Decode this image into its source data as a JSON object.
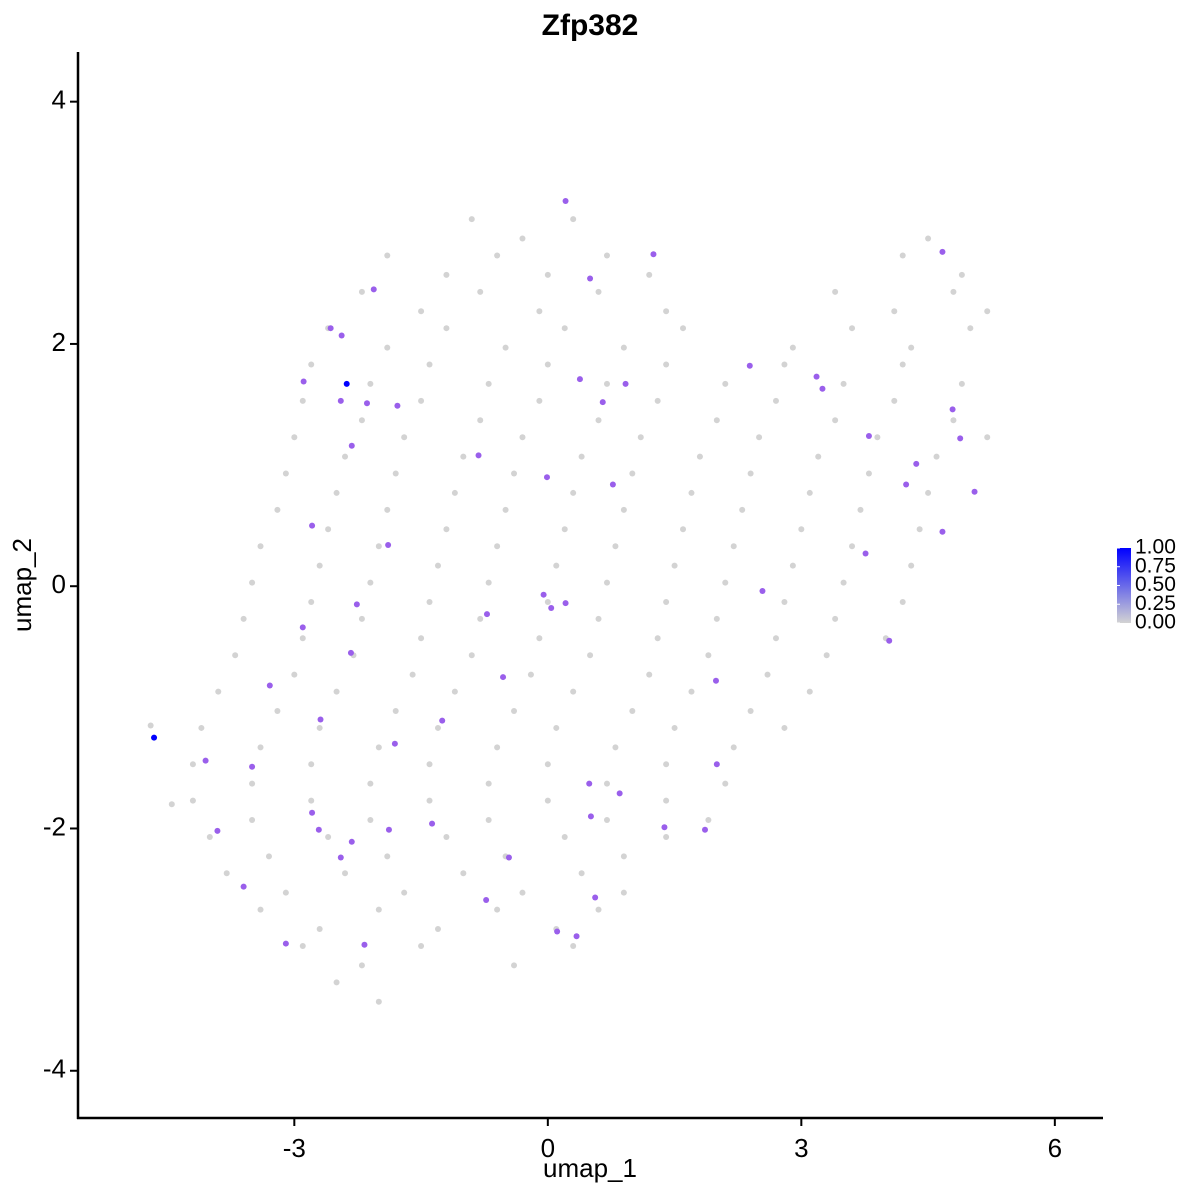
{
  "chart_data": {
    "type": "scatter",
    "title": "Zfp382",
    "xlabel": "umap_1",
    "ylabel": "umap_2",
    "xlim": [
      -5.56,
      6.57
    ],
    "ylim": [
      -4.39,
      4.41
    ],
    "xticks": [
      -3,
      0,
      3,
      6
    ],
    "yticks": [
      -4,
      -2,
      0,
      2,
      4
    ],
    "color_low": "#d3d3d3",
    "color_high": "#0000ff",
    "clim": [
      0,
      1
    ],
    "colorbar_ticks": [
      {
        "value": 0,
        "label": "0.00"
      },
      {
        "value": 0.25,
        "label": "0.25"
      },
      {
        "value": 0.5,
        "label": "0.50"
      },
      {
        "value": 0.75,
        "label": "0.75"
      },
      {
        "value": 1,
        "label": "1.00"
      }
    ],
    "x": [
      -0.9,
      -0.3,
      0.3,
      4.5,
      -1.9,
      -1.2,
      -0.6,
      0.0,
      0.7,
      1.2,
      4.2,
      4.9,
      -2.2,
      -1.5,
      -0.8,
      -0.1,
      0.6,
      1.4,
      3.4,
      4.1,
      4.8,
      5.2,
      -2.6,
      -1.9,
      -1.2,
      -0.5,
      0.2,
      0.9,
      1.6,
      2.9,
      3.6,
      4.3,
      5.0,
      -2.8,
      -2.1,
      -1.4,
      -0.7,
      0.0,
      0.7,
      1.4,
      2.1,
      2.8,
      3.5,
      4.2,
      4.9,
      -2.9,
      -2.2,
      -1.5,
      -0.8,
      -0.1,
      0.6,
      1.3,
      2.0,
      2.7,
      3.4,
      4.1,
      4.8,
      -3.0,
      -2.4,
      -1.7,
      -1.0,
      -0.3,
      0.4,
      1.1,
      1.8,
      2.5,
      3.2,
      3.9,
      4.6,
      5.2,
      -3.1,
      -2.5,
      -1.8,
      -1.1,
      -0.4,
      0.3,
      1.0,
      1.7,
      2.4,
      3.1,
      3.8,
      4.5,
      -3.2,
      -2.6,
      -1.9,
      -1.2,
      -0.5,
      0.2,
      0.9,
      1.6,
      2.3,
      3.0,
      3.7,
      4.4,
      -3.4,
      -2.7,
      -2.0,
      -1.3,
      -0.6,
      0.1,
      0.8,
      1.5,
      2.2,
      2.9,
      3.6,
      4.3,
      -3.5,
      -2.8,
      -2.1,
      -1.4,
      -0.7,
      0.0,
      0.7,
      1.4,
      2.1,
      2.8,
      3.5,
      4.2,
      -3.6,
      -2.9,
      -2.2,
      -1.5,
      -0.8,
      -0.1,
      0.6,
      1.3,
      2.0,
      2.7,
      3.4,
      4.0,
      -3.7,
      -3.0,
      -2.3,
      -1.6,
      -0.9,
      -0.2,
      0.5,
      1.2,
      1.9,
      2.6,
      3.3,
      -3.9,
      -3.2,
      -2.5,
      -1.8,
      -1.1,
      -0.4,
      0.3,
      1.0,
      1.7,
      2.4,
      3.1,
      -4.1,
      -3.4,
      -2.7,
      -2.0,
      -1.3,
      -0.6,
      0.1,
      0.8,
      1.5,
      2.2,
      2.8,
      -4.2,
      -3.5,
      -2.8,
      -2.1,
      -1.4,
      -0.7,
      0.0,
      0.7,
      1.4,
      2.1,
      -4.2,
      -3.5,
      -2.8,
      -2.1,
      -1.4,
      -0.7,
      0.0,
      0.7,
      1.4,
      1.9,
      -4.0,
      -3.3,
      -2.6,
      -1.9,
      -1.2,
      -0.5,
      0.2,
      0.9,
      1.4,
      -3.8,
      -3.1,
      -2.4,
      -1.7,
      -1.0,
      -0.3,
      0.4,
      0.9,
      -3.4,
      -2.7,
      -2.0,
      -1.3,
      -0.6,
      0.1,
      0.6,
      -2.9,
      -2.2,
      -1.5,
      -0.4,
      0.3,
      -2.5,
      -2.0,
      -4.7,
      -4.45,
      0.21,
      1.25,
      0.5,
      -2.06,
      -2.57,
      -2.44,
      -2.89,
      -2.38,
      -2.45,
      -2.14,
      -1.78,
      -2.32,
      0.38,
      0.92,
      0.65,
      -0.82,
      -0.01,
      0.77,
      2.39,
      3.18,
      3.25,
      3.8,
      4.79,
      4.88,
      4.36,
      4.24,
      5.05,
      4.67,
      4.67,
      3.76,
      -2.79,
      -1.89,
      -0.05,
      0.04,
      0.21,
      -0.72,
      -2.26,
      -2.9,
      -2.33,
      -3.29,
      -0.53,
      2.54,
      4.04,
      1.99,
      -2.69,
      -1.25,
      -1.81,
      -4.66,
      -4.05,
      -3.5,
      2.0,
      0.49,
      0.85,
      -2.79,
      -2.71,
      -3.91,
      -1.88,
      -1.37,
      0.51,
      1.38,
      1.86,
      -2.32,
      -2.45,
      -0.46,
      -3.6,
      -0.73,
      0.56,
      0.11,
      0.34,
      -3.1,
      -2.17
    ],
    "y": [
      3.03,
      2.87,
      3.03,
      2.87,
      2.73,
      2.57,
      2.73,
      2.57,
      2.73,
      2.57,
      2.73,
      2.57,
      2.43,
      2.27,
      2.43,
      2.27,
      2.43,
      2.27,
      2.43,
      2.27,
      2.43,
      2.27,
      2.13,
      1.97,
      2.13,
      1.97,
      2.13,
      1.97,
      2.13,
      1.97,
      2.13,
      1.97,
      2.13,
      1.83,
      1.67,
      1.83,
      1.67,
      1.83,
      1.67,
      1.83,
      1.67,
      1.83,
      1.67,
      1.83,
      1.67,
      1.53,
      1.37,
      1.53,
      1.37,
      1.53,
      1.37,
      1.53,
      1.37,
      1.53,
      1.37,
      1.53,
      1.37,
      1.23,
      1.07,
      1.23,
      1.07,
      1.23,
      1.07,
      1.23,
      1.07,
      1.23,
      1.07,
      1.23,
      1.07,
      1.23,
      0.93,
      0.77,
      0.93,
      0.77,
      0.93,
      0.77,
      0.93,
      0.77,
      0.93,
      0.77,
      0.93,
      0.77,
      0.63,
      0.47,
      0.63,
      0.47,
      0.63,
      0.47,
      0.63,
      0.47,
      0.63,
      0.47,
      0.63,
      0.47,
      0.33,
      0.17,
      0.33,
      0.17,
      0.33,
      0.17,
      0.33,
      0.17,
      0.33,
      0.17,
      0.33,
      0.17,
      0.03,
      -0.13,
      0.03,
      -0.13,
      0.03,
      -0.13,
      0.03,
      -0.13,
      0.03,
      -0.13,
      0.03,
      -0.13,
      -0.27,
      -0.43,
      -0.27,
      -0.43,
      -0.27,
      -0.43,
      -0.27,
      -0.43,
      -0.27,
      -0.43,
      -0.27,
      -0.43,
      -0.57,
      -0.73,
      -0.57,
      -0.73,
      -0.57,
      -0.73,
      -0.57,
      -0.73,
      -0.57,
      -0.73,
      -0.57,
      -0.87,
      -1.03,
      -0.87,
      -1.03,
      -0.87,
      -1.03,
      -0.87,
      -1.03,
      -0.87,
      -1.03,
      -0.87,
      -1.17,
      -1.33,
      -1.17,
      -1.33,
      -1.17,
      -1.33,
      -1.17,
      -1.33,
      -1.17,
      -1.33,
      -1.17,
      -1.47,
      -1.63,
      -1.47,
      -1.63,
      -1.47,
      -1.63,
      -1.47,
      -1.63,
      -1.47,
      -1.63,
      -1.77,
      -1.93,
      -1.77,
      -1.93,
      -1.77,
      -1.93,
      -1.77,
      -1.93,
      -1.77,
      -1.93,
      -2.07,
      -2.23,
      -2.07,
      -2.23,
      -2.07,
      -2.23,
      -2.07,
      -2.23,
      -2.07,
      -2.37,
      -2.53,
      -2.37,
      -2.53,
      -2.37,
      -2.53,
      -2.37,
      -2.53,
      -2.67,
      -2.83,
      -2.67,
      -2.83,
      -2.67,
      -2.83,
      -2.67,
      -2.97,
      -3.13,
      -2.97,
      -3.13,
      -2.97,
      -3.27,
      -3.43,
      -1.15,
      -1.8,
      3.18,
      2.74,
      2.54,
      2.45,
      2.13,
      2.07,
      1.69,
      1.67,
      1.53,
      1.51,
      1.49,
      1.16,
      1.71,
      1.67,
      1.52,
      1.08,
      0.9,
      0.84,
      1.82,
      1.73,
      1.63,
      1.24,
      1.46,
      1.22,
      1.01,
      0.84,
      0.78,
      2.76,
      0.45,
      0.27,
      0.5,
      0.34,
      -0.07,
      -0.18,
      -0.14,
      -0.23,
      -0.15,
      -0.34,
      -0.55,
      -0.82,
      -0.75,
      -0.04,
      -0.45,
      -0.78,
      -1.1,
      -1.11,
      -1.3,
      -1.25,
      -1.44,
      -1.49,
      -1.47,
      -1.63,
      -1.71,
      -1.87,
      -2.01,
      -2.02,
      -2.01,
      -1.96,
      -1.9,
      -1.99,
      -2.01,
      -2.11,
      -2.24,
      -2.24,
      -2.48,
      -2.59,
      -2.57,
      -2.85,
      -2.89,
      -2.95,
      -2.96
    ],
    "values": [
      0,
      0,
      0,
      0,
      0,
      0,
      0,
      0,
      0,
      0,
      0,
      0,
      0,
      0,
      0,
      0,
      0,
      0,
      0,
      0,
      0,
      0,
      0,
      0,
      0,
      0,
      0,
      0,
      0,
      0,
      0,
      0,
      0,
      0,
      0,
      0,
      0,
      0,
      0,
      0,
      0,
      0,
      0,
      0,
      0,
      0,
      0,
      0,
      0,
      0,
      0,
      0,
      0,
      0,
      0,
      0,
      0,
      0,
      0,
      0,
      0,
      0,
      0,
      0,
      0,
      0,
      0,
      0,
      0,
      0,
      0,
      0,
      0,
      0,
      0,
      0,
      0,
      0,
      0,
      0,
      0,
      0,
      0,
      0,
      0,
      0,
      0,
      0,
      0,
      0,
      0,
      0,
      0,
      0,
      0,
      0,
      0,
      0,
      0,
      0,
      0,
      0,
      0,
      0,
      0,
      0,
      0,
      0,
      0,
      0,
      0,
      0,
      0,
      0,
      0,
      0,
      0,
      0,
      0,
      0,
      0,
      0,
      0,
      0,
      0,
      0,
      0,
      0,
      0,
      0,
      0,
      0,
      0,
      0,
      0,
      0,
      0,
      0,
      0,
      0,
      0,
      0,
      0,
      0,
      0,
      0,
      0,
      0,
      0,
      0,
      0,
      0,
      0,
      0,
      0,
      0,
      0,
      0,
      0,
      0,
      0,
      0,
      0,
      0,
      0,
      0,
      0,
      0,
      0,
      0,
      0,
      0,
      0,
      0,
      0,
      0,
      0,
      0,
      0,
      0,
      0,
      0,
      0,
      0,
      0,
      0,
      0,
      0,
      0,
      0,
      0,
      0,
      0,
      0,
      0,
      0,
      0,
      0,
      0,
      0,
      0,
      0,
      0,
      0,
      0,
      0,
      0,
      0,
      0,
      0,
      0,
      0,
      0,
      0,
      0,
      0,
      0.55,
      0.55,
      0.55,
      0.55,
      0.55,
      0.55,
      0.55,
      1,
      0.55,
      0.55,
      0.55,
      0.55,
      0.55,
      0.55,
      0.55,
      0.55,
      0.55,
      0.55,
      0.55,
      0.55,
      0.55,
      0.55,
      0.55,
      0.55,
      0.55,
      0.55,
      0.55,
      0.55,
      0.55,
      0.55,
      0.55,
      0.55,
      0.55,
      0.55,
      0.55,
      0.55,
      0.55,
      0.55,
      0.55,
      0.55,
      0.55,
      0.55,
      0.55,
      0.55,
      0.55,
      0.55,
      0.55,
      1,
      0.55,
      0.55,
      0.55,
      0.55,
      0.55,
      0.55,
      0.55,
      0.55,
      0.55,
      0.55,
      0.55,
      0.55,
      0.55,
      0.55,
      0.55,
      0.55,
      0.55,
      0.55,
      0.55,
      0.55,
      0.55,
      0.55,
      0.55
    ]
  }
}
